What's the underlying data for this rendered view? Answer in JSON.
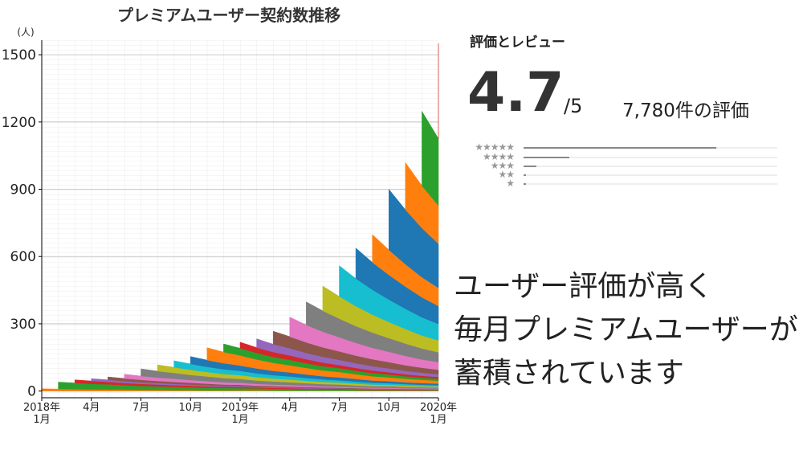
{
  "chart_data": {
    "type": "stacked-area",
    "title": "プレミアムユーザー契約数推移",
    "y_unit": "(人)",
    "categories": [
      "2018年\n1月",
      null,
      null,
      "4月",
      null,
      null,
      "7月",
      null,
      null,
      "10月",
      null,
      null,
      "2019年\n1月",
      null,
      null,
      "4月",
      null,
      null,
      "7月",
      null,
      null,
      "10月",
      null,
      null,
      "2020年\n1月"
    ],
    "ylim": [
      -30,
      1565
    ],
    "yticks": [
      0,
      300,
      600,
      900,
      1200,
      1500
    ],
    "grid": true,
    "series": [
      {
        "color": "#ff7f0e",
        "values": [
          10,
          9,
          8,
          7,
          7,
          6,
          5,
          5,
          4,
          4,
          3,
          3,
          3,
          3,
          2,
          2,
          2,
          2,
          2,
          1,
          1,
          1,
          1,
          1,
          1
        ]
      },
      {
        "color": "#2ca02c",
        "values": [
          null,
          31,
          28,
          25,
          23,
          20,
          18,
          16,
          15,
          13,
          12,
          11,
          10,
          9,
          8,
          7,
          6,
          6,
          5,
          5,
          4,
          4,
          3,
          3,
          3
        ]
      },
      {
        "color": "#d62728",
        "values": [
          null,
          null,
          14,
          13,
          11,
          10,
          9,
          8,
          7,
          7,
          6,
          5,
          5,
          4,
          4,
          4,
          3,
          3,
          3,
          2,
          2,
          2,
          2,
          2,
          1
        ]
      },
      {
        "color": "#9467bd",
        "values": [
          null,
          null,
          null,
          10,
          9,
          8,
          7,
          7,
          6,
          5,
          5,
          4,
          4,
          3,
          3,
          3,
          3,
          2,
          2,
          2,
          2,
          2,
          1,
          1,
          1
        ]
      },
      {
        "color": "#8c564b",
        "values": [
          null,
          null,
          null,
          null,
          13,
          12,
          11,
          9,
          9,
          8,
          7,
          6,
          6,
          5,
          5,
          4,
          4,
          3,
          3,
          3,
          2,
          2,
          2,
          2,
          2
        ]
      },
      {
        "color": "#e377c2",
        "values": [
          null,
          null,
          null,
          null,
          null,
          19,
          17,
          15,
          14,
          12,
          11,
          10,
          9,
          8,
          7,
          7,
          6,
          5,
          5,
          4,
          4,
          4,
          3,
          3,
          3
        ]
      },
      {
        "color": "#7f7f7f",
        "values": [
          null,
          null,
          null,
          null,
          null,
          null,
          32,
          29,
          26,
          23,
          21,
          19,
          17,
          15,
          14,
          12,
          11,
          10,
          9,
          8,
          7,
          7,
          6,
          5,
          5
        ]
      },
      {
        "color": "#bcbd22",
        "values": [
          null,
          null,
          null,
          null,
          null,
          null,
          null,
          28,
          25,
          23,
          20,
          18,
          17,
          15,
          13,
          12,
          11,
          10,
          9,
          8,
          7,
          6,
          6,
          5,
          5
        ]
      },
      {
        "color": "#17becf",
        "values": [
          null,
          null,
          null,
          null,
          null,
          null,
          null,
          null,
          29,
          26,
          23,
          21,
          19,
          17,
          15,
          14,
          12,
          11,
          10,
          9,
          8,
          7,
          7,
          6,
          5
        ]
      },
      {
        "color": "#1f77b4",
        "values": [
          null,
          null,
          null,
          null,
          null,
          null,
          null,
          null,
          null,
          33,
          30,
          27,
          24,
          22,
          19,
          18,
          16,
          14,
          13,
          12,
          10,
          9,
          8,
          8,
          7
        ]
      },
      {
        "color": "#ff7f0e",
        "values": [
          null,
          null,
          null,
          null,
          null,
          null,
          null,
          null,
          null,
          null,
          55,
          50,
          45,
          40,
          36,
          32,
          29,
          26,
          24,
          21,
          19,
          17,
          16,
          14,
          13
        ]
      },
      {
        "color": "#2ca02c",
        "values": [
          null,
          null,
          null,
          null,
          null,
          null,
          null,
          null,
          null,
          null,
          null,
          36,
          32,
          29,
          26,
          24,
          21,
          19,
          17,
          15,
          14,
          13,
          11,
          10,
          9
        ]
      },
      {
        "color": "#d62728",
        "values": [
          null,
          null,
          null,
          null,
          null,
          null,
          null,
          null,
          null,
          null,
          null,
          null,
          27,
          24,
          22,
          20,
          18,
          16,
          14,
          13,
          12,
          10,
          9,
          8,
          8
        ]
      },
      {
        "color": "#9467bd",
        "values": [
          null,
          null,
          null,
          null,
          null,
          null,
          null,
          null,
          null,
          null,
          null,
          null,
          null,
          39,
          35,
          32,
          28,
          26,
          23,
          21,
          19,
          17,
          15,
          14,
          12
        ]
      },
      {
        "color": "#8c564b",
        "values": [
          null,
          null,
          null,
          null,
          null,
          null,
          null,
          null,
          null,
          null,
          null,
          null,
          null,
          null,
          58,
          52,
          47,
          42,
          38,
          34,
          31,
          28,
          25,
          22,
          20
        ]
      },
      {
        "color": "#e377c2",
        "values": [
          null,
          null,
          null,
          null,
          null,
          null,
          null,
          null,
          null,
          null,
          null,
          null,
          null,
          null,
          null,
          87,
          78,
          70,
          63,
          57,
          51,
          46,
          42,
          37,
          34
        ]
      },
      {
        "color": "#7f7f7f",
        "values": [
          null,
          null,
          null,
          null,
          null,
          null,
          null,
          null,
          null,
          null,
          null,
          null,
          null,
          null,
          null,
          null,
          103,
          93,
          83,
          75,
          68,
          61,
          55,
          49,
          44
        ]
      },
      {
        "color": "#bcbd22",
        "values": [
          null,
          null,
          null,
          null,
          null,
          null,
          null,
          null,
          null,
          null,
          null,
          null,
          null,
          null,
          null,
          null,
          null,
          110,
          99,
          89,
          80,
          72,
          65,
          58,
          53
        ]
      },
      {
        "color": "#17becf",
        "values": [
          null,
          null,
          null,
          null,
          null,
          null,
          null,
          null,
          null,
          null,
          null,
          null,
          null,
          null,
          null,
          null,
          null,
          null,
          137,
          123,
          111,
          100,
          90,
          81,
          73
        ]
      },
      {
        "color": "#1f77b4",
        "values": [
          null,
          null,
          null,
          null,
          null,
          null,
          null,
          null,
          null,
          null,
          null,
          null,
          null,
          null,
          null,
          null,
          null,
          null,
          null,
          136,
          122,
          110,
          99,
          89,
          80
        ]
      },
      {
        "color": "#ff7f0e",
        "values": [
          null,
          null,
          null,
          null,
          null,
          null,
          null,
          null,
          null,
          null,
          null,
          null,
          null,
          null,
          null,
          null,
          null,
          null,
          null,
          null,
          124,
          112,
          100,
          90,
          81
        ]
      },
      {
        "color": "#1f77b4",
        "values": [
          null,
          null,
          null,
          null,
          null,
          null,
          null,
          null,
          null,
          null,
          null,
          null,
          null,
          null,
          null,
          null,
          null,
          null,
          null,
          null,
          null,
          270,
          243,
          219,
          197
        ]
      },
      {
        "color": "#ff7f0e",
        "values": [
          null,
          null,
          null,
          null,
          null,
          null,
          null,
          null,
          null,
          null,
          null,
          null,
          null,
          null,
          null,
          null,
          null,
          null,
          null,
          null,
          null,
          null,
          210,
          189,
          170
        ]
      },
      {
        "color": "#2ca02c",
        "values": [
          null,
          null,
          null,
          null,
          null,
          null,
          null,
          null,
          null,
          null,
          null,
          null,
          null,
          null,
          null,
          null,
          null,
          null,
          null,
          null,
          null,
          null,
          null,
          332,
          299
        ]
      },
      {
        "color": "#d62728",
        "values": [
          null,
          null,
          null,
          null,
          null,
          null,
          null,
          null,
          null,
          null,
          null,
          null,
          null,
          null,
          null,
          null,
          null,
          null,
          null,
          null,
          null,
          null,
          null,
          null,
          425
        ]
      },
      {
        "color": "#9467bd",
        "values": [
          null,
          null,
          null,
          null,
          null,
          null,
          null,
          null,
          null,
          null,
          null,
          null,
          null,
          null,
          null,
          null,
          null,
          null,
          null,
          null,
          null,
          null,
          null,
          null,
          null
        ]
      }
    ]
  },
  "ratings": {
    "heading": "評価とレビュー",
    "score": "4.7",
    "out_of": "/5",
    "count": "7,780件の評価",
    "distribution": [
      76,
      18,
      5,
      1,
      1
    ]
  },
  "tagline": [
    "ユーザー評価が高く",
    "毎月プレミアムユーザーが",
    "蓄積されています"
  ]
}
